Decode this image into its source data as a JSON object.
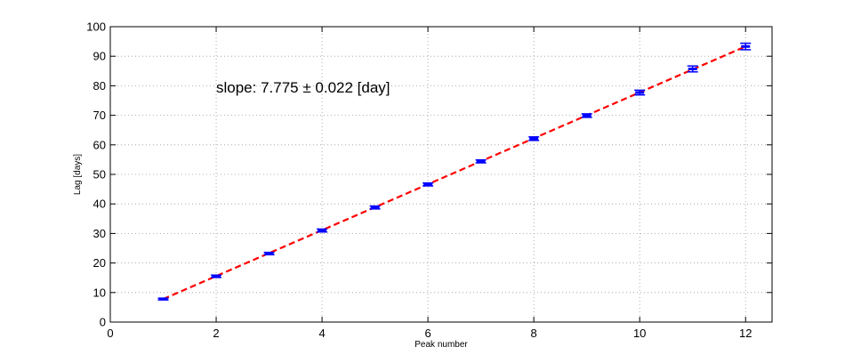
{
  "chart_data": {
    "type": "scatter",
    "title": "",
    "xlabel": "Peak number",
    "ylabel": "Lag [days]",
    "xlim": [
      0,
      12.5
    ],
    "ylim": [
      0,
      100
    ],
    "xticks": [
      0,
      2,
      4,
      6,
      8,
      10,
      12
    ],
    "yticks": [
      0,
      10,
      20,
      30,
      40,
      50,
      60,
      70,
      80,
      90,
      100
    ],
    "grid": true,
    "annotation": "slope: 7.775 ± 0.022 [day]",
    "points": {
      "x": [
        1,
        2,
        3,
        4,
        5,
        6,
        7,
        8,
        9,
        10,
        11,
        12
      ],
      "y": [
        7.8,
        15.5,
        23.2,
        31.0,
        38.8,
        46.6,
        54.4,
        62.1,
        69.9,
        77.7,
        85.7,
        93.3
      ],
      "err": [
        0.3,
        0.4,
        0.4,
        0.5,
        0.5,
        0.5,
        0.5,
        0.6,
        0.6,
        0.8,
        1.0,
        1.1
      ],
      "color": "#0000ff"
    },
    "fit": {
      "style": "dashed",
      "color": "#ff0000",
      "x": [
        1,
        12
      ],
      "y": [
        7.8,
        93.3
      ]
    }
  }
}
